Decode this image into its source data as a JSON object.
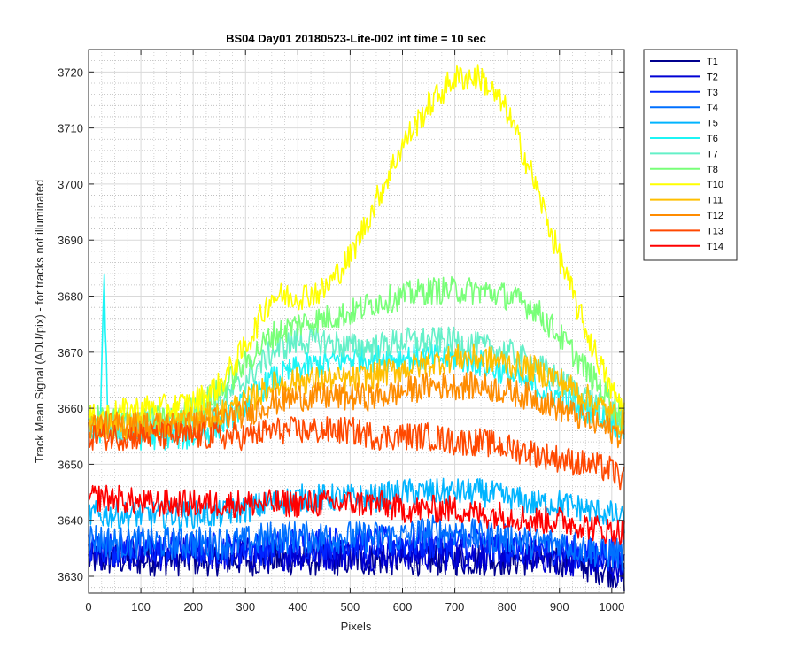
{
  "chart_data": {
    "type": "line",
    "title": "BS04 Day01 20180523-Lite-002 int time = 10 sec",
    "xlabel": "Pixels",
    "ylabel": "Track Mean Signal (ADU/pix) - for tracks not illuminated",
    "xlim": [
      0,
      1024
    ],
    "ylim": [
      3627,
      3724
    ],
    "xticks": [
      0,
      100,
      200,
      300,
      400,
      500,
      600,
      700,
      800,
      900,
      1000
    ],
    "yticks": [
      3630,
      3640,
      3650,
      3660,
      3670,
      3680,
      3690,
      3700,
      3710,
      3720
    ],
    "grid": "major and minor",
    "legend_position": "outside-top-right",
    "x": [
      0,
      50,
      100,
      150,
      200,
      250,
      300,
      350,
      400,
      450,
      500,
      550,
      600,
      650,
      700,
      750,
      800,
      850,
      900,
      950,
      1000,
      1023
    ],
    "series": [
      {
        "name": "T1",
        "color": "#00008f",
        "noise": 3,
        "values": [
          3633,
          3633,
          3633,
          3633,
          3633,
          3633,
          3633,
          3633,
          3633,
          3633,
          3633,
          3633,
          3633,
          3633,
          3633,
          3633,
          3633,
          3633,
          3633,
          3632,
          3631,
          3630
        ]
      },
      {
        "name": "T2",
        "color": "#0000d4",
        "noise": 3,
        "values": [
          3634,
          3634,
          3634,
          3634,
          3634,
          3634,
          3634,
          3634,
          3634,
          3634,
          3634,
          3634,
          3634,
          3634,
          3634,
          3634,
          3634,
          3634,
          3633,
          3633,
          3632,
          3632
        ]
      },
      {
        "name": "T3",
        "color": "#0024ff",
        "noise": 3,
        "values": [
          3635,
          3635,
          3635,
          3635,
          3635,
          3635,
          3635,
          3635,
          3636,
          3636,
          3636,
          3636,
          3636,
          3636,
          3636,
          3636,
          3635,
          3635,
          3635,
          3634,
          3634,
          3633
        ]
      },
      {
        "name": "T4",
        "color": "#0070ff",
        "noise": 3,
        "values": [
          3637,
          3636,
          3636,
          3636,
          3636,
          3636,
          3636,
          3637,
          3637,
          3637,
          3637,
          3637,
          3637,
          3638,
          3638,
          3637,
          3637,
          3636,
          3636,
          3635,
          3634,
          3634
        ]
      },
      {
        "name": "T5",
        "color": "#00b4ff",
        "noise": 2.5,
        "values": [
          3641,
          3641,
          3641,
          3641,
          3641,
          3641,
          3642,
          3643,
          3644,
          3644,
          3644,
          3644,
          3645,
          3645,
          3645,
          3645,
          3644,
          3643,
          3643,
          3642,
          3641,
          3640
        ]
      },
      {
        "name": "T6",
        "color": "#1cf5f5",
        "noise": 2.5,
        "values": [
          3656,
          3656,
          3655,
          3655,
          3655,
          3657,
          3661,
          3665,
          3667,
          3668,
          3669,
          3669,
          3669,
          3669,
          3669,
          3668,
          3666,
          3664,
          3662,
          3660,
          3658,
          3656
        ]
      },
      {
        "name": "T7",
        "color": "#64f0c8",
        "noise": 2.5,
        "values": [
          3657,
          3657,
          3657,
          3657,
          3658,
          3661,
          3665,
          3670,
          3672,
          3672,
          3671,
          3671,
          3672,
          3672,
          3672,
          3671,
          3670,
          3668,
          3665,
          3662,
          3659,
          3658
        ]
      },
      {
        "name": "T8",
        "color": "#78ff78",
        "noise": 2.5,
        "values": [
          3658,
          3658,
          3658,
          3658,
          3660,
          3663,
          3668,
          3673,
          3675,
          3676,
          3677,
          3679,
          3680,
          3681,
          3681,
          3681,
          3680,
          3678,
          3673,
          3667,
          3661,
          3658
        ]
      },
      {
        "name": "T10",
        "color": "#ffff00",
        "noise": 2.5,
        "values": [
          3658,
          3659,
          3660,
          3660,
          3661,
          3664,
          3671,
          3680,
          3680,
          3681,
          3687,
          3697,
          3707,
          3714,
          3719,
          3719,
          3713,
          3701,
          3687,
          3674,
          3663,
          3660
        ]
      },
      {
        "name": "T11",
        "color": "#ffbf00",
        "noise": 2.5,
        "values": [
          3657,
          3657,
          3657,
          3657,
          3658,
          3659,
          3661,
          3664,
          3665,
          3665,
          3665,
          3666,
          3667,
          3668,
          3669,
          3669,
          3668,
          3667,
          3665,
          3662,
          3659,
          3657
        ]
      },
      {
        "name": "T12",
        "color": "#ff8c00",
        "noise": 2.5,
        "values": [
          3657,
          3657,
          3657,
          3657,
          3657,
          3658,
          3659,
          3661,
          3662,
          3662,
          3662,
          3662,
          3663,
          3664,
          3664,
          3664,
          3663,
          3662,
          3660,
          3658,
          3656,
          3655
        ]
      },
      {
        "name": "T13",
        "color": "#ff4800",
        "noise": 2.5,
        "values": [
          3655,
          3655,
          3655,
          3655,
          3655,
          3655,
          3655,
          3656,
          3656,
          3656,
          3656,
          3655,
          3655,
          3655,
          3654,
          3654,
          3653,
          3652,
          3651,
          3650,
          3649,
          3647
        ]
      },
      {
        "name": "T14",
        "color": "#ff0000",
        "noise": 2.5,
        "values": [
          3644,
          3644,
          3643,
          3643,
          3643,
          3643,
          3643,
          3643,
          3643,
          3643,
          3643,
          3643,
          3642,
          3642,
          3642,
          3641,
          3641,
          3640,
          3640,
          3639,
          3638,
          3638
        ]
      }
    ],
    "annotations": [
      {
        "series": "T6",
        "x": 30,
        "y": 3684,
        "note": "narrow spike"
      }
    ]
  }
}
